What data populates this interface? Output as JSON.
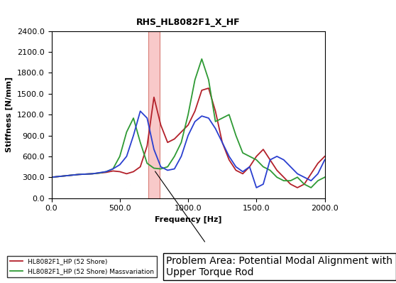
{
  "chart_data": {
    "type": "line",
    "title": "RHS_HL8082F1_X_HF",
    "x_label": "Frequency [Hz]",
    "y_label": "Stiffness [N/mm]",
    "x": [
      0,
      50,
      100,
      150,
      200,
      250,
      300,
      350,
      400,
      450,
      500,
      550,
      600,
      650,
      700,
      750,
      800,
      850,
      900,
      950,
      1000,
      1050,
      1100,
      1150,
      1200,
      1250,
      1300,
      1350,
      1400,
      1450,
      1500,
      1550,
      1600,
      1650,
      1700,
      1750,
      1800,
      1850,
      1900,
      1950,
      2000
    ],
    "series": [
      {
        "name": "HL8082F1_HP (52 Shore)",
        "color": "#b3202a",
        "values": [
          300,
          310,
          320,
          330,
          340,
          345,
          350,
          360,
          370,
          390,
          380,
          350,
          380,
          450,
          750,
          1450,
          1050,
          800,
          850,
          950,
          1050,
          1250,
          1550,
          1580,
          1250,
          800,
          550,
          400,
          350,
          450,
          600,
          700,
          550,
          400,
          300,
          200,
          150,
          200,
          350,
          500,
          600
        ]
      },
      {
        "name": "HL8082F1_HP (52 Shore) Massvariation",
        "color": "#2e9a34",
        "values": [
          300,
          310,
          320,
          330,
          340,
          345,
          350,
          360,
          380,
          420,
          600,
          950,
          1150,
          800,
          500,
          430,
          420,
          450,
          600,
          800,
          1200,
          1700,
          2000,
          1700,
          1100,
          1150,
          1200,
          900,
          650,
          600,
          550,
          450,
          400,
          300,
          250,
          250,
          300,
          200,
          150,
          250,
          300
        ]
      },
      {
        "color": "#2a3fd0",
        "values": [
          300,
          310,
          320,
          330,
          340,
          345,
          350,
          365,
          380,
          420,
          480,
          600,
          900,
          1250,
          1150,
          700,
          450,
          400,
          420,
          600,
          900,
          1100,
          1180,
          1150,
          1000,
          800,
          600,
          450,
          380,
          450,
          150,
          200,
          550,
          600,
          550,
          450,
          350,
          300,
          250,
          350,
          550
        ]
      }
    ],
    "xlim": [
      0,
      2000
    ],
    "xticks": [
      {
        "value": 0,
        "label": "0.0"
      },
      {
        "value": 500,
        "label": "500.0"
      },
      {
        "value": 1000,
        "label": "1000.0"
      },
      {
        "value": 1500,
        "label": "1500.0"
      },
      {
        "value": 2000,
        "label": "2000.0"
      }
    ],
    "ylim": [
      0,
      2400
    ],
    "yticks": [
      {
        "value": 0,
        "label": "0.0"
      },
      {
        "value": 300,
        "label": "300.0"
      },
      {
        "value": 600,
        "label": "600.0"
      },
      {
        "value": 900,
        "label": "900.0"
      },
      {
        "value": 1200,
        "label": "1200.0"
      },
      {
        "value": 1500,
        "label": "1500.0"
      },
      {
        "value": 1800,
        "label": "1800.0"
      },
      {
        "value": 2100,
        "label": "2100.0"
      },
      {
        "value": 2400,
        "label": "2400.0"
      }
    ],
    "highlight_x": [
      710,
      790
    ],
    "annotation": "Problem Area: Potential Modal Alignment with Upper Torque Rod",
    "grid": false,
    "legend": "lower left"
  }
}
